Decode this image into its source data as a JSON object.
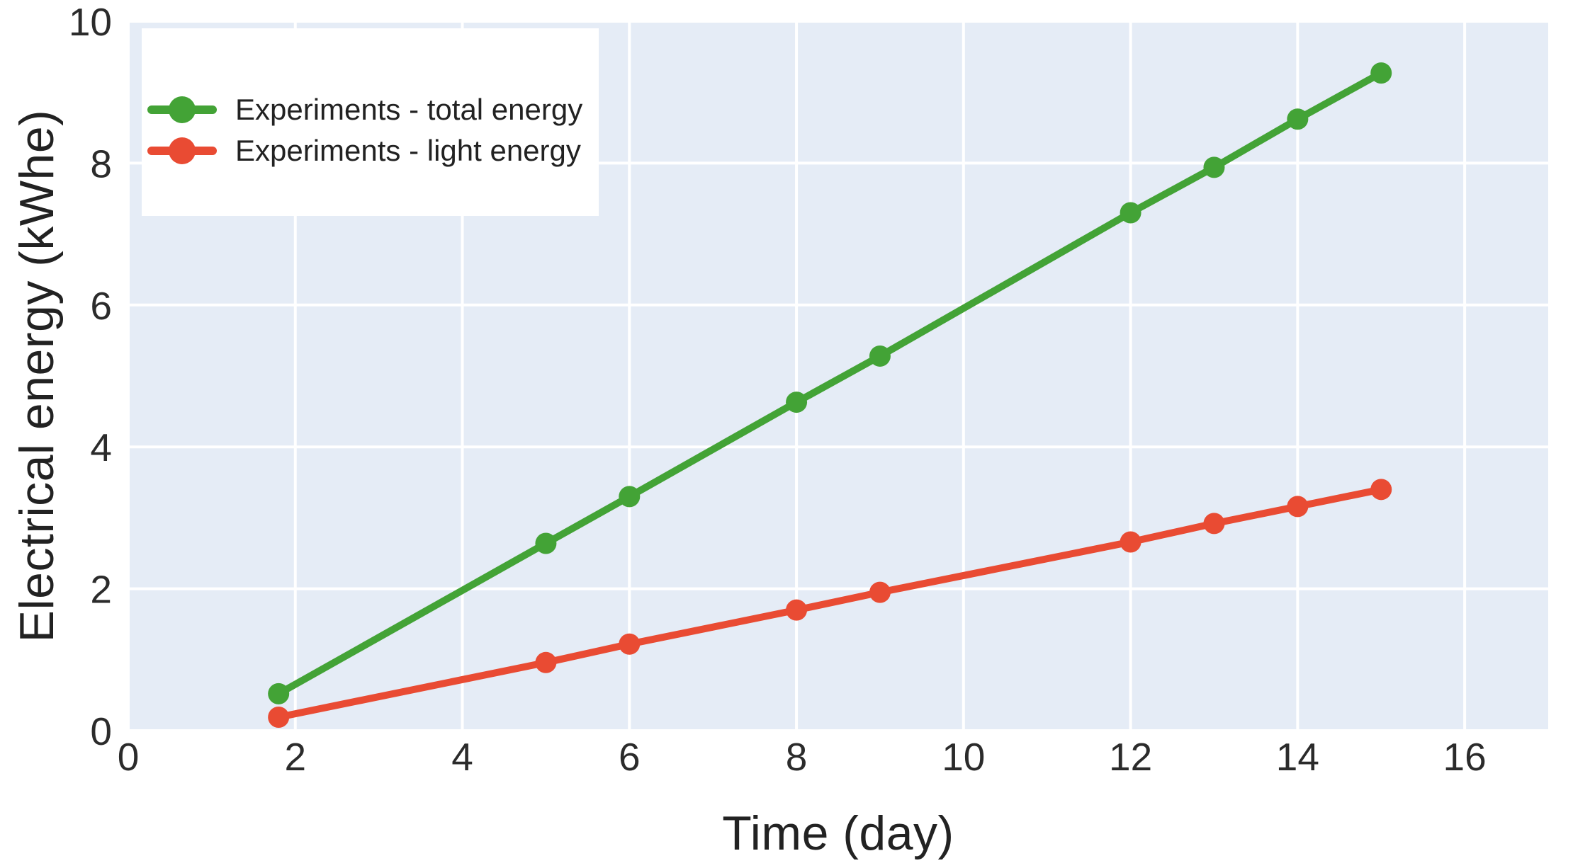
{
  "chart_data": {
    "type": "line",
    "title": "",
    "xlabel": "Time (day)",
    "ylabel": "Electrical energy (kWhe)",
    "xlim": [
      0,
      17
    ],
    "ylim": [
      0,
      10
    ],
    "x_ticks": [
      0,
      2,
      4,
      6,
      8,
      10,
      12,
      14,
      16
    ],
    "y_ticks": [
      0,
      2,
      4,
      6,
      8,
      10
    ],
    "grid": true,
    "legend_position": "top-left",
    "series": [
      {
        "name": "Experiments - total energy",
        "color": "#43a336",
        "x": [
          1.8,
          5,
          6,
          8,
          9,
          12,
          13,
          14,
          15
        ],
        "y": [
          0.52,
          2.64,
          3.3,
          4.63,
          5.28,
          7.3,
          7.94,
          8.62,
          9.27
        ]
      },
      {
        "name": "Experiments - light energy",
        "color": "#e94b33",
        "x": [
          1.8,
          5,
          6,
          8,
          9,
          12,
          13,
          14,
          15
        ],
        "y": [
          0.19,
          0.96,
          1.22,
          1.7,
          1.95,
          2.66,
          2.92,
          3.16,
          3.4
        ]
      }
    ]
  },
  "colors": {
    "plot_bg": "#e5ecf6",
    "grid": "#ffffff",
    "tick_text": "#2b2b2b",
    "title_text": "#222222"
  }
}
